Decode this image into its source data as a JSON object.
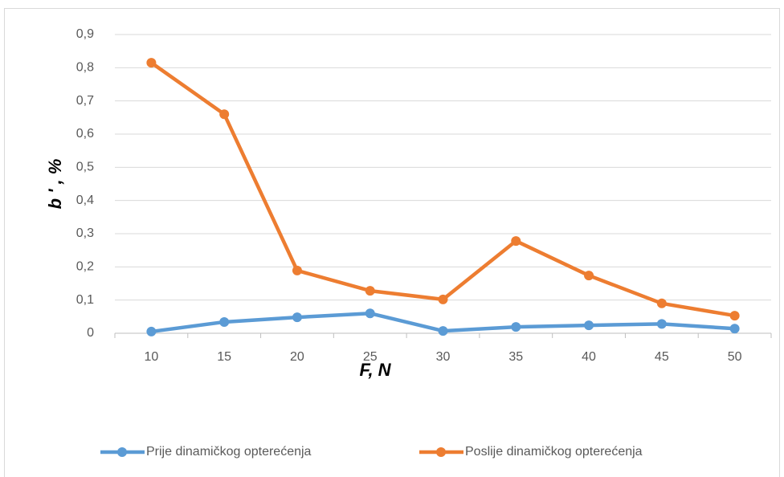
{
  "chart_data": {
    "type": "line",
    "categories": [
      "10",
      "15",
      "20",
      "25",
      "30",
      "35",
      "40",
      "45",
      "50"
    ],
    "series": [
      {
        "name": "Prije dinamičkog opterećenja",
        "color": "#5b9bd5",
        "values": [
          0.005,
          0.034,
          0.048,
          0.06,
          0.007,
          0.019,
          0.024,
          0.028,
          0.014
        ]
      },
      {
        "name": "Poslije dinamičkog opterećenja",
        "color": "#ed7d31",
        "values": [
          0.815,
          0.66,
          0.189,
          0.128,
          0.102,
          0.278,
          0.174,
          0.09,
          0.053
        ]
      }
    ],
    "xlabel": "F, N",
    "ylabel": "b ' , %",
    "ylim": [
      0,
      0.9
    ],
    "yticks": [
      0,
      {
        "value": 0.1,
        "label": "0,1"
      },
      {
        "value": 0.2,
        "label": "0,2"
      },
      {
        "value": 0.3,
        "label": "0,3"
      },
      {
        "value": 0.4,
        "label": "0,4"
      },
      {
        "value": 0.5,
        "label": "0,5"
      },
      {
        "value": 0.6,
        "label": "0,6"
      },
      {
        "value": 0.7,
        "label": "0,7"
      },
      {
        "value": 0.8,
        "label": "0,8"
      },
      {
        "value": 0.9,
        "label": "0,9"
      }
    ],
    "grid": true,
    "legend": "bottom"
  }
}
